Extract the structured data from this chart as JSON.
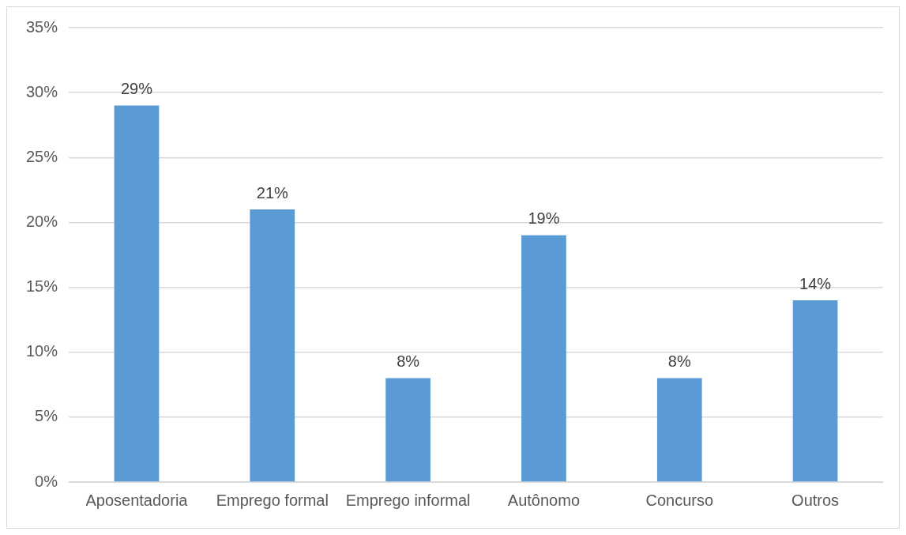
{
  "chart_data": {
    "type": "bar",
    "categories": [
      "Aposentadoria",
      "Emprego formal",
      "Emprego informal",
      "Autônomo",
      "Concurso",
      "Outros"
    ],
    "values": [
      29,
      21,
      8,
      19,
      8,
      14
    ],
    "value_labels": [
      "29%",
      "21%",
      "8%",
      "19%",
      "8%",
      "14%"
    ],
    "color": "#5b9bd5",
    "ylim": [
      0,
      35
    ],
    "yticks": [
      {
        "value": 0,
        "label": "0%"
      },
      {
        "value": 5,
        "label": "5%"
      },
      {
        "value": 10,
        "label": "10%"
      },
      {
        "value": 15,
        "label": "15%"
      },
      {
        "value": 20,
        "label": "20%"
      },
      {
        "value": 25,
        "label": "25%"
      },
      {
        "value": 30,
        "label": "30%"
      },
      {
        "value": 35,
        "label": "35%"
      }
    ],
    "grid": "y",
    "legend": false
  }
}
